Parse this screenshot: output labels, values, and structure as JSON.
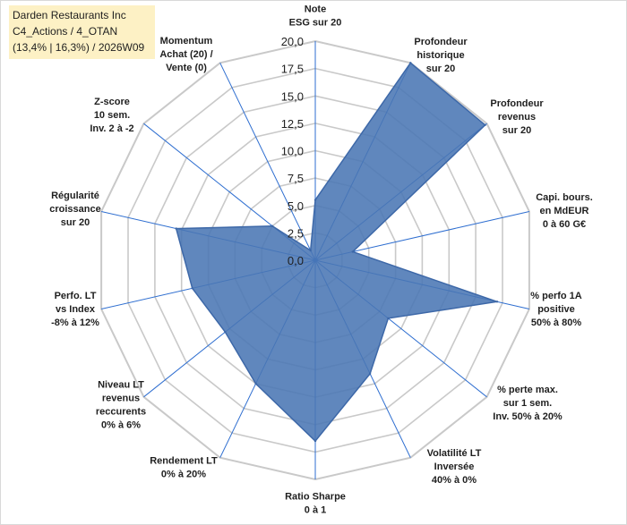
{
  "title_box": {
    "line1": "Darden Restaurants Inc",
    "line2": "C4_Actions / 4_OTAN",
    "line3": "(13,4% | 16,3%) / 2026W09"
  },
  "chart_data": {
    "type": "radar",
    "range": [
      0,
      20
    ],
    "tick_step": 2.5,
    "tick_labels": [
      "0,0",
      "2,5",
      "5,0",
      "7,5",
      "10,0",
      "12,5",
      "15,0",
      "17,5",
      "20,0"
    ],
    "axes": [
      {
        "label": [
          "Note",
          "ESG sur 20"
        ],
        "value": 5.5
      },
      {
        "label": [
          "Profondeur",
          "historique",
          "sur 20"
        ],
        "value": 20.0
      },
      {
        "label": [
          "Profondeur",
          "revenus",
          "sur 20"
        ],
        "value": 19.8
      },
      {
        "label": [
          "Capi. bours.",
          "en MdEUR",
          "0 à 60 G€"
        ],
        "value": 3.5
      },
      {
        "label": [
          "% perfo 1A",
          "positive",
          "50% à 80%"
        ],
        "value": 17.0
      },
      {
        "label": [
          "% perte max.",
          "sur 1 sem.",
          "Inv. 50% à 20%"
        ],
        "value": 8.5
      },
      {
        "label": [
          "Volatilité LT",
          "Inversée",
          "40% à 0%"
        ],
        "value": 11.5
      },
      {
        "label": [
          "Ratio Sharpe",
          "0 à 1"
        ],
        "value": 16.5
      },
      {
        "label": [
          "Rendement LT",
          "0% à 20%"
        ],
        "value": 12.5
      },
      {
        "label": [
          "Niveau LT",
          "revenus",
          "reccurents",
          "0% à 6%"
        ],
        "value": 10.5
      },
      {
        "label": [
          "Perfo. LT",
          "vs Index",
          "-8% à 12%"
        ],
        "value": 11.5
      },
      {
        "label": [
          "Régularité",
          "croissance",
          "sur 20"
        ],
        "value": 13.0
      },
      {
        "label": [
          "Z-score",
          "10 sem.",
          "Inv. 2 à -2"
        ],
        "value": 5.0
      },
      {
        "label": [
          "Momentum",
          "Achat (20) /",
          "Vente (0)"
        ],
        "value": 1.0
      }
    ],
    "colors": {
      "fill": "#4a76b4",
      "stroke": "#3d68a8",
      "grid": "#c9c9c9",
      "spoke": "#2e6ed0"
    }
  }
}
